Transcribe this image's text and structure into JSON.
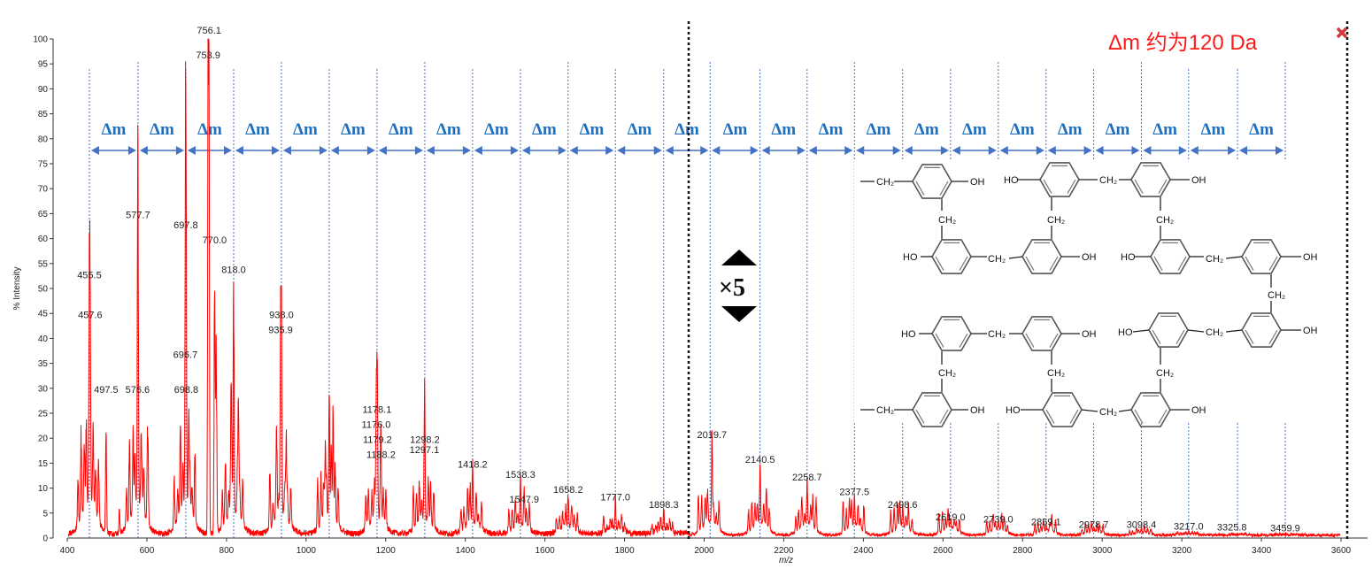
{
  "chart_data": {
    "type": "line",
    "title": "",
    "xlabel": "m/z",
    "ylabel": "% Intensity",
    "xlim": [
      400,
      3600
    ],
    "ylim": [
      0,
      100
    ],
    "xticks": [
      400,
      600,
      800,
      1000,
      1200,
      1400,
      1600,
      1800,
      2000,
      2200,
      2400,
      2600,
      2800,
      3000,
      3200,
      3400,
      3600
    ],
    "yticks": [
      0,
      5,
      10,
      15,
      20,
      25,
      30,
      35,
      40,
      45,
      50,
      55,
      60,
      65,
      70,
      75,
      80,
      85,
      90,
      95,
      100
    ],
    "grid": false,
    "line_color": "#ff0000",
    "peaks": [
      {
        "label": "455.5",
        "mz": 455.5,
        "intensity": 51
      },
      {
        "label": "457.6",
        "mz": 457.6,
        "intensity": 43
      },
      {
        "label": "497.5",
        "mz": 497.5,
        "intensity": 28
      },
      {
        "label": "576.6",
        "mz": 576.6,
        "intensity": 28
      },
      {
        "label": "577.7",
        "mz": 577.7,
        "intensity": 63
      },
      {
        "label": "696.7",
        "mz": 696.7,
        "intensity": 35
      },
      {
        "label": "697.8",
        "mz": 697.8,
        "intensity": 61
      },
      {
        "label": "698.8",
        "mz": 698.8,
        "intensity": 28
      },
      {
        "label": "753.9",
        "mz": 753.9,
        "intensity": 95
      },
      {
        "label": "756.1",
        "mz": 756.1,
        "intensity": 100
      },
      {
        "label": "770.0",
        "mz": 770.0,
        "intensity": 58
      },
      {
        "label": "818.0",
        "mz": 818.0,
        "intensity": 52
      },
      {
        "label": "935.9",
        "mz": 935.9,
        "intensity": 40
      },
      {
        "label": "938.0",
        "mz": 938.0,
        "intensity": 43
      },
      {
        "label": "1176.0",
        "mz": 1176.0,
        "intensity": 21
      },
      {
        "label": "1178.1",
        "mz": 1178.1,
        "intensity": 24
      },
      {
        "label": "1179.2",
        "mz": 1179.2,
        "intensity": 18
      },
      {
        "label": "1188.2",
        "mz": 1188.2,
        "intensity": 15
      },
      {
        "label": "1297.1",
        "mz": 1297.1,
        "intensity": 16
      },
      {
        "label": "1298.2",
        "mz": 1298.2,
        "intensity": 18
      },
      {
        "label": "1418.2",
        "mz": 1418.2,
        "intensity": 13
      },
      {
        "label": "1538.3",
        "mz": 1538.3,
        "intensity": 11
      },
      {
        "label": "1547.9",
        "mz": 1547.9,
        "intensity": 6
      },
      {
        "label": "1658.2",
        "mz": 1658.2,
        "intensity": 8
      },
      {
        "label": "1777.0",
        "mz": 1777.0,
        "intensity": 6.5
      },
      {
        "label": "1898.3",
        "mz": 1898.3,
        "intensity": 5
      },
      {
        "label": "2019.7",
        "mz": 2019.7,
        "intensity": 19
      },
      {
        "label": "2140.5",
        "mz": 2140.5,
        "intensity": 14
      },
      {
        "label": "2258.7",
        "mz": 2258.7,
        "intensity": 10.5
      },
      {
        "label": "2377.5",
        "mz": 2377.5,
        "intensity": 7.5
      },
      {
        "label": "2498.6",
        "mz": 2498.6,
        "intensity": 5
      },
      {
        "label": "2619.0",
        "mz": 2619.0,
        "intensity": 2.5
      },
      {
        "label": "2739.0",
        "mz": 2739.0,
        "intensity": 2
      },
      {
        "label": "2859.1",
        "mz": 2859.1,
        "intensity": 1.5
      },
      {
        "label": "2978.7",
        "mz": 2978.7,
        "intensity": 1
      },
      {
        "label": "3098.4",
        "mz": 3098.4,
        "intensity": 1
      },
      {
        "label": "3217.0",
        "mz": 3217.0,
        "intensity": 0.6
      },
      {
        "label": "3325.8",
        "mz": 3325.8,
        "intensity": 0.4
      },
      {
        "label": "3459.9",
        "mz": 3459.9,
        "intensity": 0.3
      }
    ],
    "repeat_markers_mz": [
      455.5,
      577.7,
      697.8,
      818.0,
      938.0,
      1058,
      1178.1,
      1298.2,
      1418.2,
      1538.3,
      1658.2,
      1777.0,
      1898.3,
      2015,
      2140.5,
      2258.7,
      2377.5,
      2498.6,
      2619.0,
      2739.0,
      2859.1,
      2978.7,
      3098.4,
      3217.0,
      3340,
      3459.9
    ],
    "interval_label": "Δm",
    "magnified_region_start_mz": 1961,
    "magnification_label": "×5",
    "annotation": "Δm 约为120 Da",
    "marker_color": "#4472c4",
    "annotation_color": "#ff1a1a"
  },
  "structure": {
    "labels": [
      "CH₂",
      "OH",
      "HO",
      "CH₂",
      "OH",
      "CH₂",
      "CH₂",
      "CH₂",
      "HO",
      "CH₂",
      "OH",
      "HO",
      "CH₂",
      "OH",
      "CH₂",
      "HO",
      "CH₂",
      "OH",
      "HO",
      "CH₂",
      "OH",
      "CH₂",
      "CH₂",
      "CH₂",
      "CH₂",
      "OH",
      "HO",
      "CH₂",
      "OH"
    ]
  }
}
